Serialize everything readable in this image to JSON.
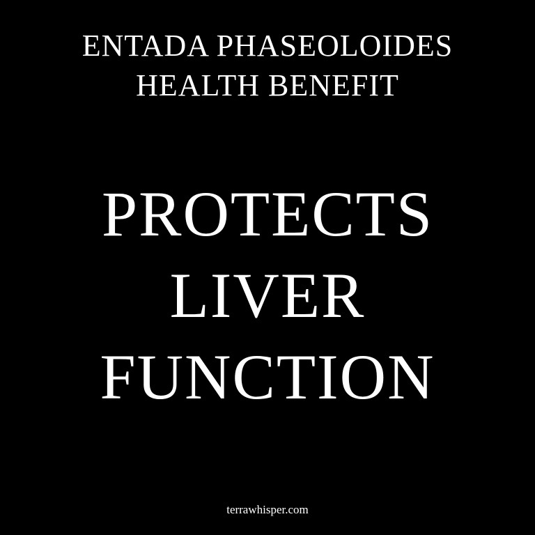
{
  "header": {
    "line1": "ENTADA PHASEOLOIDES",
    "line2": "HEALTH BENEFIT"
  },
  "headline": {
    "line1": "PROTECTS",
    "line2": "LIVER",
    "line3": "FUNCTION"
  },
  "footer": {
    "site": "terrawhisper.com"
  },
  "colors": {
    "background": "#000000",
    "text": "#ffffff"
  }
}
